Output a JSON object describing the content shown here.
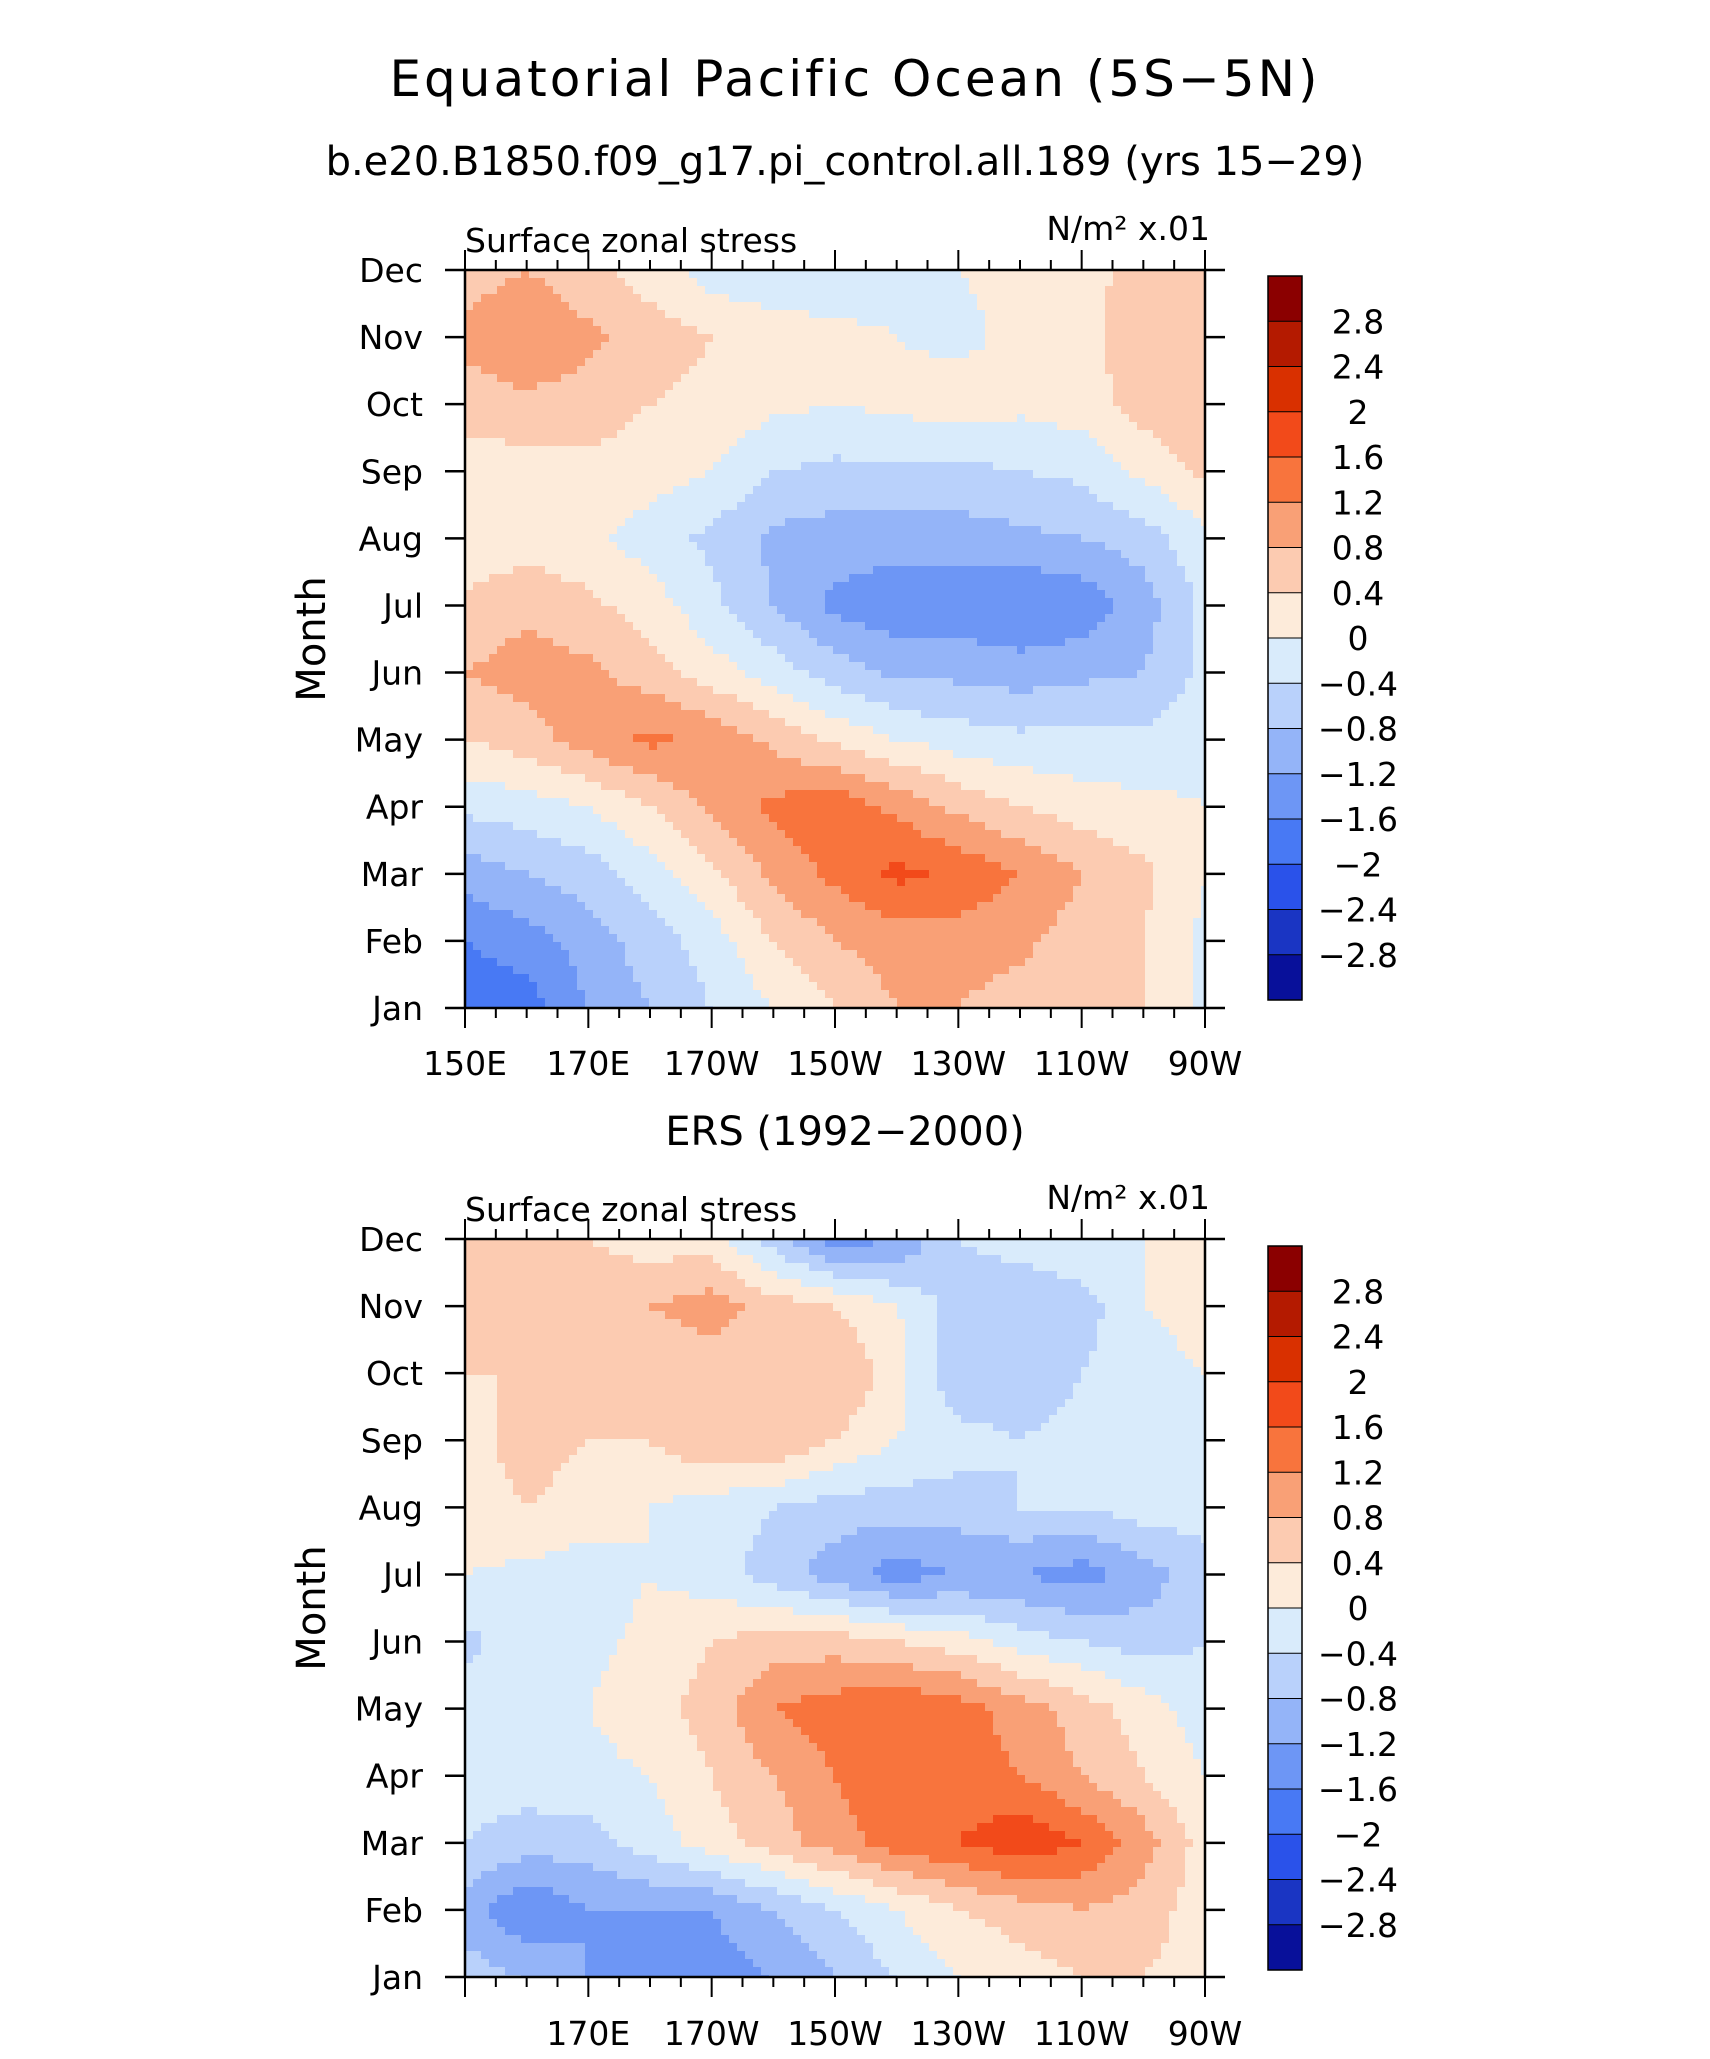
{
  "figure": {
    "title": "Equatorial Pacific Ocean (5S−5N)"
  },
  "colorbar": {
    "labels": [
      "2.8",
      "2.4",
      "2",
      "1.6",
      "1.2",
      "0.8",
      "0.4",
      "0",
      "−0.4",
      "−0.8",
      "−1.2",
      "−1.6",
      "−2",
      "−2.4",
      "−2.8"
    ],
    "colors": [
      "#8b0000",
      "#b41a00",
      "#d93000",
      "#f24a1a",
      "#f8743d",
      "#f9a076",
      "#fccbb1",
      "#fdebda",
      "#d9ebfb",
      "#b9d1fb",
      "#94b4f8",
      "#6d96f5",
      "#4879f4",
      "#2a52ea",
      "#1a35c3",
      "#08109a"
    ]
  },
  "chart_data": [
    {
      "type": "heatmap",
      "title": "b.e20.B1850.f09_g17.pi_control.all.189 (yrs 15−29)",
      "left_string": "Surface zonal stress",
      "right_string": "N/m² x.01",
      "ylabel": "Month",
      "xlabel": "",
      "x_tick_labels": [
        "150E",
        "170E",
        "170W",
        "150W",
        "130W",
        "110W",
        "90W"
      ],
      "y_tick_labels": [
        "Jan",
        "Feb",
        "Mar",
        "Apr",
        "May",
        "Jun",
        "Jul",
        "Aug",
        "Sep",
        "Oct",
        "Nov",
        "Dec"
      ],
      "x": [
        150,
        160,
        170,
        180,
        190,
        200,
        210,
        220,
        230,
        240,
        250,
        260,
        270
      ],
      "y": [
        "Jan",
        "Feb",
        "Mar",
        "Apr",
        "May",
        "Jun",
        "Jul",
        "Aug",
        "Sep",
        "Oct",
        "Nov",
        "Dec"
      ],
      "xlim": [
        150,
        270
      ],
      "levels": [
        -2.8,
        -2.4,
        -2.0,
        -1.6,
        -1.2,
        -0.8,
        -0.4,
        0,
        0.4,
        0.8,
        1.2,
        1.6,
        2.0,
        2.4,
        2.8
      ],
      "z": [
        [
          -1.8,
          -1.8,
          -1.2,
          -0.8,
          -0.4,
          0.0,
          0.4,
          0.8,
          0.8,
          0.6,
          0.5,
          0.4,
          -0.1
        ],
        [
          -1.6,
          -1.4,
          -1.0,
          -0.6,
          -0.2,
          0.4,
          0.8,
          1.0,
          1.0,
          0.9,
          0.6,
          0.4,
          -0.1
        ],
        [
          -1.0,
          -0.8,
          -0.6,
          -0.2,
          0.3,
          0.9,
          1.3,
          1.7,
          1.5,
          1.2,
          0.8,
          0.5,
          0.0
        ],
        [
          -0.3,
          -0.2,
          0.0,
          0.4,
          0.9,
          1.3,
          1.5,
          1.1,
          0.7,
          0.4,
          0.2,
          0.1,
          0.0
        ],
        [
          0.4,
          0.6,
          1.0,
          1.3,
          1.1,
          0.7,
          0.3,
          0.0,
          -0.2,
          -0.3,
          -0.3,
          -0.3,
          -0.1
        ],
        [
          0.8,
          1.0,
          0.9,
          0.6,
          0.2,
          -0.2,
          -0.6,
          -0.9,
          -0.9,
          -1.0,
          -0.9,
          -0.8,
          -0.3
        ],
        [
          0.5,
          0.7,
          0.5,
          0.2,
          -0.3,
          -0.8,
          -1.3,
          -1.5,
          -1.5,
          -1.6,
          -1.5,
          -1.0,
          -0.3
        ],
        [
          0.1,
          0.2,
          0.1,
          -0.2,
          -0.5,
          -0.9,
          -1.0,
          -1.0,
          -1.0,
          -0.9,
          -0.8,
          -0.6,
          -0.1
        ],
        [
          0.2,
          0.2,
          0.3,
          0.2,
          0.0,
          -0.4,
          -0.5,
          -0.5,
          -0.5,
          -0.4,
          -0.3,
          0.1,
          0.5
        ],
        [
          0.6,
          0.7,
          0.6,
          0.4,
          0.3,
          0.1,
          0.0,
          0.1,
          0.2,
          0.1,
          0.2,
          0.6,
          0.7
        ],
        [
          0.9,
          1.2,
          0.9,
          0.6,
          0.4,
          0.3,
          0.1,
          0.0,
          -0.1,
          0.1,
          0.3,
          0.6,
          0.6
        ],
        [
          0.6,
          0.8,
          0.5,
          0.2,
          -0.2,
          -0.4,
          -0.3,
          -0.1,
          0.0,
          0.1,
          0.3,
          0.5,
          0.4
        ]
      ]
    },
    {
      "type": "heatmap",
      "title": "ERS (1992−2000)",
      "left_string": "Surface zonal stress",
      "right_string": "N/m² x.01",
      "ylabel": "Month",
      "xlabel": "",
      "x_tick_labels": [
        "170E",
        "170W",
        "150W",
        "130W",
        "110W",
        "90W"
      ],
      "y_tick_labels": [
        "Jan",
        "Feb",
        "Mar",
        "Apr",
        "May",
        "Jun",
        "Jul",
        "Aug",
        "Sep",
        "Oct",
        "Nov",
        "Dec"
      ],
      "x": [
        150,
        160,
        170,
        180,
        190,
        200,
        210,
        220,
        230,
        240,
        250,
        260,
        270
      ],
      "y": [
        "Jan",
        "Feb",
        "Mar",
        "Apr",
        "May",
        "Jun",
        "Jul",
        "Aug",
        "Sep",
        "Oct",
        "Nov",
        "Dec"
      ],
      "xlim": [
        150,
        270
      ],
      "levels": [
        -2.8,
        -2.4,
        -2.0,
        -1.6,
        -1.2,
        -0.8,
        -0.4,
        0,
        0.4,
        0.8,
        1.2,
        1.6,
        2.0,
        2.4,
        2.8
      ],
      "z": [
        [
          -0.6,
          -0.8,
          -1.2,
          -1.4,
          -1.4,
          -1.2,
          -0.8,
          -0.4,
          0.0,
          0.2,
          0.4,
          0.4,
          0.2
        ],
        [
          -1.0,
          -1.6,
          -1.2,
          -1.2,
          -1.2,
          -0.8,
          -0.4,
          0.0,
          0.4,
          0.6,
          0.8,
          0.6,
          0.2
        ],
        [
          -0.4,
          -0.6,
          -0.6,
          -0.2,
          0.2,
          0.6,
          1.0,
          1.4,
          1.6,
          1.9,
          1.6,
          1.0,
          0.2
        ],
        [
          -0.2,
          -0.2,
          -0.1,
          0.0,
          0.4,
          0.8,
          1.2,
          1.6,
          1.4,
          1.2,
          0.8,
          0.4,
          0.0
        ],
        [
          -0.2,
          -0.1,
          0.0,
          0.2,
          0.6,
          1.2,
          1.4,
          1.6,
          1.4,
          1.0,
          0.6,
          0.2,
          -0.2
        ],
        [
          -0.5,
          -0.2,
          -0.1,
          0.1,
          0.4,
          0.6,
          0.6,
          0.4,
          0.2,
          -0.2,
          -0.4,
          -0.6,
          -0.4
        ],
        [
          0.0,
          -0.1,
          -0.2,
          0.0,
          -0.2,
          -0.6,
          -1.0,
          -1.4,
          -1.2,
          -1.2,
          -1.4,
          -1.0,
          -0.6
        ],
        [
          0.2,
          0.4,
          0.2,
          0.0,
          -0.2,
          -0.4,
          -0.6,
          -0.6,
          -0.6,
          -0.4,
          -0.4,
          -0.2,
          -0.2
        ],
        [
          0.2,
          0.6,
          0.4,
          0.4,
          0.8,
          0.8,
          0.4,
          0.0,
          -0.2,
          -0.4,
          -0.2,
          0.0,
          0.0
        ],
        [
          0.4,
          0.4,
          0.6,
          0.4,
          0.6,
          0.4,
          0.8,
          0.2,
          -0.8,
          -0.8,
          -0.4,
          -0.2,
          0.0
        ],
        [
          0.4,
          0.6,
          0.6,
          0.8,
          1.0,
          0.6,
          0.4,
          0.0,
          -0.6,
          -0.8,
          -0.6,
          0.0,
          0.2
        ],
        [
          0.6,
          0.8,
          0.4,
          0.2,
          0.2,
          -0.6,
          -1.4,
          -1.2,
          -0.4,
          -0.2,
          0.0,
          0.0,
          0.2
        ]
      ]
    }
  ]
}
